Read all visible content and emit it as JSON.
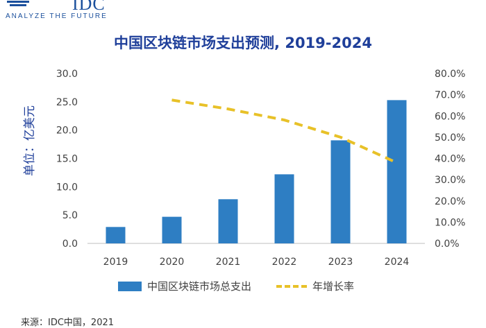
{
  "logo": {
    "letters": "IDC",
    "tagline": "ANALYZE THE FUTURE"
  },
  "chart_data": {
    "type": "bar",
    "title": "中国区块链市场支出预测, 2019-2024",
    "ylabel": "单位：亿美元",
    "categories": [
      "2019",
      "2020",
      "2021",
      "2022",
      "2023",
      "2024"
    ],
    "series": [
      {
        "name": "中国区块链市场总支出",
        "type": "bar",
        "axis": "left",
        "values": [
          2.9,
          4.7,
          7.8,
          12.2,
          18.2,
          25.3
        ],
        "color": "#2e7ec3"
      },
      {
        "name": "年增长率",
        "type": "line",
        "style": "dashed",
        "axis": "right",
        "values": [
          null,
          0.675,
          0.633,
          0.581,
          0.5,
          0.38
        ],
        "color": "#e8c128"
      }
    ],
    "ylim": [
      0,
      30
    ],
    "y_ticks": [
      "0.0",
      "5.0",
      "10.0",
      "15.0",
      "20.0",
      "25.0",
      "30.0"
    ],
    "y2lim": [
      0,
      0.8
    ],
    "y2_ticks": [
      "0.0%",
      "10.0%",
      "20.0%",
      "30.0%",
      "40.0%",
      "50.0%",
      "60.0%",
      "70.0%",
      "80.0%"
    ],
    "grid": false,
    "legend_position": "bottom"
  },
  "legend": {
    "bar_label": "中国区块链市场总支出",
    "line_label": "年增长率"
  },
  "source": "来源：IDC中国，2021"
}
